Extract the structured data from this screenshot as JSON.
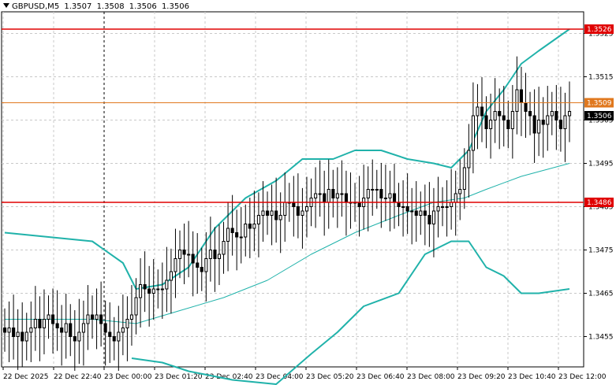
{
  "header": {
    "symbol": "GBPUSD,M5",
    "open": "1.3507",
    "high": "1.3508",
    "low": "1.3506",
    "close": "1.3506",
    "dropdown_icon": "triangle-down-icon"
  },
  "colors": {
    "background": "#ffffff",
    "grid": "#c8c8c8",
    "candle": "#000000",
    "bollinger": "#20b2aa",
    "moving_average": "#20b2aa",
    "level_red": "#e00000",
    "level_orange": "#e0781e",
    "current_price_bg": "#000000"
  },
  "levels": [
    {
      "name": "resistance-level",
      "price": 1.3526,
      "label": "1.3526",
      "color": "#e00000"
    },
    {
      "name": "level-1-3509",
      "price": 1.3509,
      "label": "1.3509",
      "color": "#e0781e"
    },
    {
      "name": "support-level",
      "price": 1.3486,
      "label": "1.3486",
      "color": "#e00000"
    }
  ],
  "current_price": "1.3506",
  "chart_data": {
    "type": "candlestick",
    "ylim": [
      1.3448,
      1.353
    ],
    "y_ticks": [
      "1.3525",
      "1.3515",
      "1.3505",
      "1.3495",
      "1.3485",
      "1.3475",
      "1.3465",
      "1.3455"
    ],
    "x_ticks": [
      "22 Dec 2025",
      "22 Dec 22:40",
      "23 Dec 00:00",
      "23 Dec 01:20",
      "23 Dec 02:40",
      "23 Dec 04:00",
      "23 Dec 05:20",
      "23 Dec 06:40",
      "23 Dec 08:00",
      "23 Dec 09:20",
      "23 Dec 10:40",
      "23 Dec 12:00"
    ],
    "closes": [
      1.3456,
      1.3457,
      1.3455,
      1.3456,
      1.3454,
      1.3456,
      1.3457,
      1.3459,
      1.3457,
      1.3459,
      1.346,
      1.3458,
      1.3457,
      1.3456,
      1.3458,
      1.3455,
      1.3454,
      1.3456,
      1.3458,
      1.346,
      1.3459,
      1.346,
      1.3458,
      1.3456,
      1.3455,
      1.3454,
      1.3456,
      1.3457,
      1.3459,
      1.346,
      1.3464,
      1.3467,
      1.3466,
      1.3465,
      1.3466,
      1.3466,
      1.3466,
      1.3468,
      1.347,
      1.3473,
      1.3475,
      1.3474,
      1.3474,
      1.3472,
      1.3471,
      1.347,
      1.3473,
      1.3475,
      1.3473,
      1.3474,
      1.3477,
      1.348,
      1.3479,
      1.3478,
      1.3478,
      1.3481,
      1.348,
      1.3481,
      1.3483,
      1.3484,
      1.3483,
      1.3484,
      1.3482,
      1.3483,
      1.3486,
      1.3486,
      1.3485,
      1.3483,
      1.3484,
      1.3485,
      1.3487,
      1.3488,
      1.3488,
      1.3486,
      1.3489,
      1.3487,
      1.3488,
      1.3488,
      1.3486,
      1.3486,
      1.3486,
      1.3485,
      1.3487,
      1.3489,
      1.3489,
      1.3489,
      1.3487,
      1.3487,
      1.3488,
      1.3486,
      1.3485,
      1.3485,
      1.3484,
      1.3484,
      1.3483,
      1.3484,
      1.3483,
      1.3481,
      1.3484,
      1.3485,
      1.3485,
      1.3485,
      1.3486,
      1.3488,
      1.3489,
      1.3494,
      1.3498,
      1.3506,
      1.3508,
      1.3506,
      1.3503,
      1.3505,
      1.3507,
      1.3506,
      1.3505,
      1.3503,
      1.3507,
      1.3512,
      1.3509,
      1.3507,
      1.3506,
      1.3502,
      1.3505,
      1.3504,
      1.3506,
      1.3507,
      1.3505,
      1.3503,
      1.3506,
      1.3507
    ],
    "bollinger_upper": [
      {
        "x": 0,
        "y": 1.3479
      },
      {
        "x": 10,
        "y": 1.3478
      },
      {
        "x": 20,
        "y": 1.3477
      },
      {
        "x": 27,
        "y": 1.3472
      },
      {
        "x": 30,
        "y": 1.3466
      },
      {
        "x": 36,
        "y": 1.3467
      },
      {
        "x": 42,
        "y": 1.3471
      },
      {
        "x": 48,
        "y": 1.348
      },
      {
        "x": 55,
        "y": 1.3487
      },
      {
        "x": 62,
        "y": 1.3491
      },
      {
        "x": 68,
        "y": 1.3496
      },
      {
        "x": 75,
        "y": 1.3496
      },
      {
        "x": 80,
        "y": 1.3498
      },
      {
        "x": 86,
        "y": 1.3498
      },
      {
        "x": 92,
        "y": 1.3496
      },
      {
        "x": 98,
        "y": 1.3495
      },
      {
        "x": 102,
        "y": 1.3494
      },
      {
        "x": 106,
        "y": 1.3498
      },
      {
        "x": 110,
        "y": 1.3507
      },
      {
        "x": 114,
        "y": 1.3512
      },
      {
        "x": 118,
        "y": 1.3518
      },
      {
        "x": 122,
        "y": 1.3521
      },
      {
        "x": 129,
        "y": 1.3526
      }
    ],
    "bollinger_lower": [
      {
        "x": 29,
        "y": 1.345
      },
      {
        "x": 36,
        "y": 1.3449
      },
      {
        "x": 42,
        "y": 1.3447
      },
      {
        "x": 52,
        "y": 1.3445
      },
      {
        "x": 62,
        "y": 1.3444
      },
      {
        "x": 70,
        "y": 1.3451
      },
      {
        "x": 76,
        "y": 1.3456
      },
      {
        "x": 82,
        "y": 1.3462
      },
      {
        "x": 90,
        "y": 1.3465
      },
      {
        "x": 96,
        "y": 1.3474
      },
      {
        "x": 102,
        "y": 1.3477
      },
      {
        "x": 106,
        "y": 1.3477
      },
      {
        "x": 110,
        "y": 1.3471
      },
      {
        "x": 114,
        "y": 1.3469
      },
      {
        "x": 118,
        "y": 1.3465
      },
      {
        "x": 122,
        "y": 1.3465
      },
      {
        "x": 129,
        "y": 1.3466
      }
    ],
    "moving_average": [
      {
        "x": 0,
        "y": 1.3459
      },
      {
        "x": 10,
        "y": 1.3459
      },
      {
        "x": 20,
        "y": 1.3459
      },
      {
        "x": 30,
        "y": 1.3458
      },
      {
        "x": 40,
        "y": 1.3461
      },
      {
        "x": 50,
        "y": 1.3464
      },
      {
        "x": 60,
        "y": 1.3468
      },
      {
        "x": 70,
        "y": 1.3474
      },
      {
        "x": 80,
        "y": 1.3479
      },
      {
        "x": 90,
        "y": 1.3483
      },
      {
        "x": 98,
        "y": 1.3486
      },
      {
        "x": 105,
        "y": 1.3487
      },
      {
        "x": 110,
        "y": 1.3489
      },
      {
        "x": 118,
        "y": 1.3492
      },
      {
        "x": 129,
        "y": 1.3495
      }
    ]
  }
}
